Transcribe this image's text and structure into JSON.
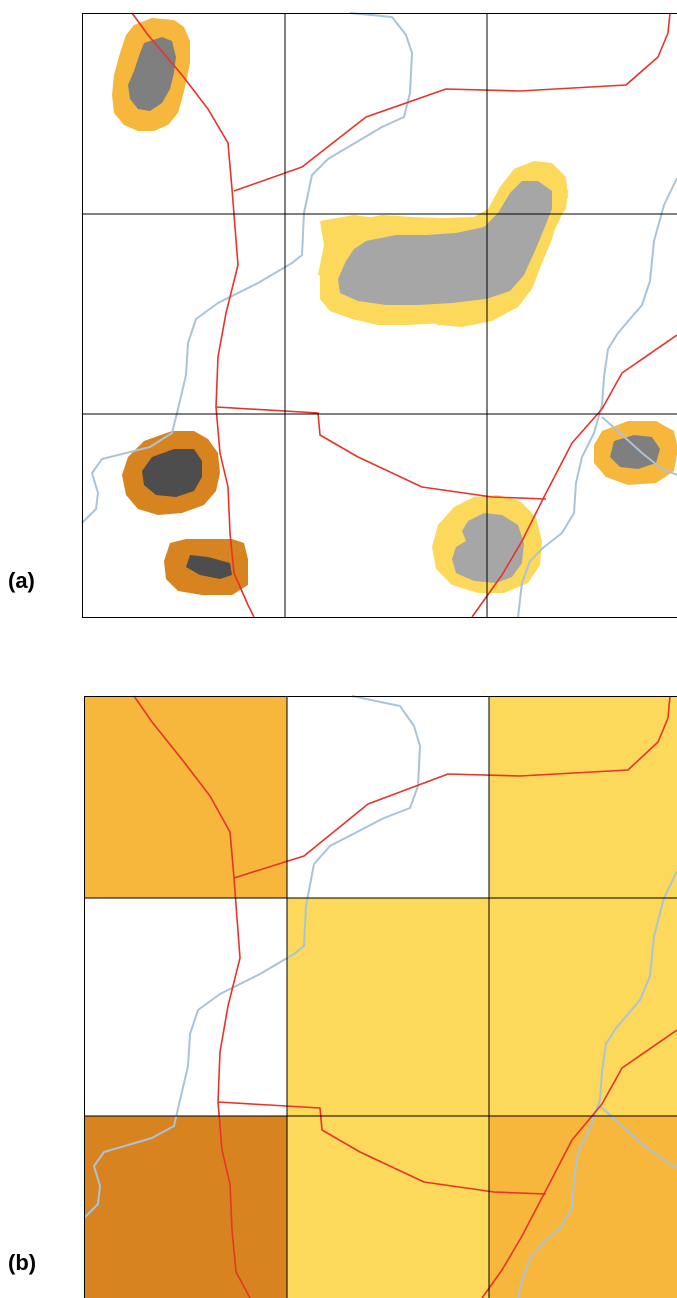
{
  "panels": [
    {
      "label": "(a)"
    },
    {
      "label": "(b)"
    }
  ],
  "colors": {
    "grid": "#000000",
    "road": "#e8332a",
    "river": "#a9c4d8",
    "buffer_light": "#fcd95a",
    "buffer_mid": "#f6b73c",
    "buffer_dark": "#d7831f",
    "core_light": "#a6a6a6",
    "core_mid": "#7f7f7f",
    "core_dark": "#4d4d4d"
  },
  "grid": {
    "rows": 3,
    "cols": 3
  },
  "cell_fill_levels_b": [
    [
      "mid",
      "none",
      "light"
    ],
    [
      "none",
      "light",
      "light"
    ],
    [
      "dark",
      "light",
      "mid"
    ]
  ]
}
